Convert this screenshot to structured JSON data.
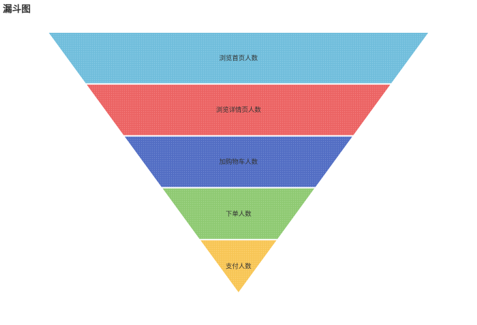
{
  "chart_data": {
    "type": "funnel",
    "title": "漏斗图",
    "sort": "descending",
    "stages": [
      {
        "label": "浏览首页人数",
        "color": "#73c0de",
        "label_color": "#333333"
      },
      {
        "label": "浏览详情页人数",
        "color": "#ee6666",
        "label_color": "#333333"
      },
      {
        "label": "加购物车人数",
        "color": "#5470c6",
        "label_color": "#ffffff"
      },
      {
        "label": "下单人数",
        "color": "#91cc75",
        "label_color": "#333333"
      },
      {
        "label": "支付人数",
        "color": "#fac858",
        "label_color": "#333333"
      }
    ]
  }
}
